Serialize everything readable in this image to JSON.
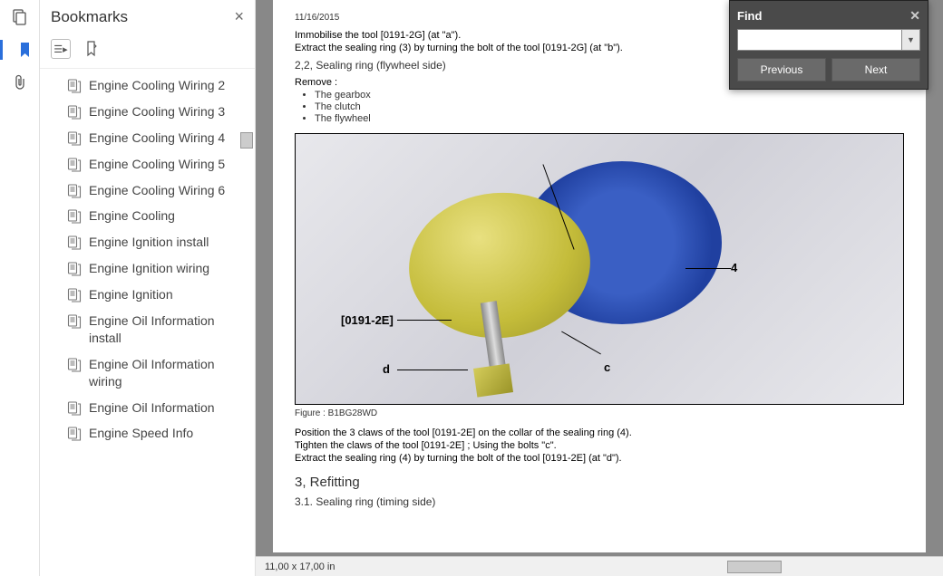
{
  "sidebar": {
    "title": "Bookmarks",
    "items": [
      "Engine Cooling Wiring 2",
      "Engine Cooling Wiring 3",
      "Engine Cooling Wiring 4",
      "Engine Cooling Wiring 5",
      "Engine Cooling Wiring 6",
      "Engine Cooling",
      "Engine Ignition install",
      "Engine Ignition wiring",
      "Engine Ignition",
      "Engine Oil Information install",
      "Engine Oil Information wiring",
      "Engine Oil Information",
      "Engine Speed Info"
    ]
  },
  "document": {
    "date": "11/16/2015",
    "line1": "Immobilise the tool [0191-2G] (at \"a\").",
    "line2": "Extract the sealing ring (3) by turning the bolt of the tool [0191-2G] (at \"b\").",
    "section22": "2,2, Sealing ring  (flywheel side)",
    "removeLabel": "Remove :",
    "removeItems": [
      "The gearbox",
      "The clutch",
      "The flywheel"
    ],
    "figCaption": "Figure : B1BG28WD",
    "annot": {
      "tool": "[0191-2E]",
      "d": "d",
      "c": "c",
      "four": "4"
    },
    "post1": "Position the 3 claws of the tool [0191-2E] on the collar of the sealing ring (4).",
    "post2": "Tighten the claws of the tool [0191-2E] ; Using the bolts \"c\".",
    "post3": "Extract the sealing ring (4) by turning the bolt of the tool [0191-2E] (at \"d\").",
    "section3": "3, Refitting",
    "section31": "3.1. Sealing ring  (timing side)"
  },
  "find": {
    "title": "Find",
    "prev": "Previous",
    "next": "Next",
    "value": ""
  },
  "status": {
    "dims": "11,00 x 17,00 in"
  }
}
